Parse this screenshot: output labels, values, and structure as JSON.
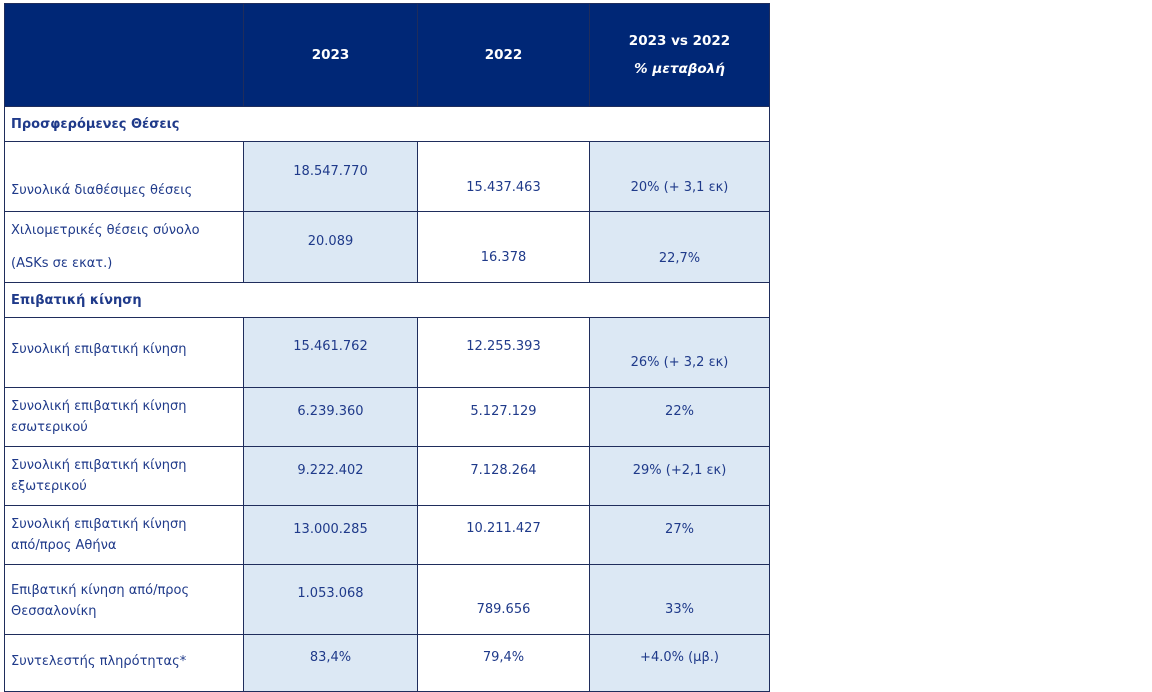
{
  "header": {
    "col2023": "2023",
    "col2022": "2022",
    "colChange": "2023 vs 2022",
    "colChangeSub": "% μεταβολή"
  },
  "sections": {
    "seats": "Προσφερόμενες Θέσεις",
    "passengers": "Επιβατική κίνηση"
  },
  "rows": [
    {
      "label": "Συνολικά διαθέσιμες θέσεις",
      "v2023": "18.547.770",
      "v2022": "15.437.463",
      "change": "20% (+ 3,1 εκ)"
    },
    {
      "label": "Χιλιομετρικές θέσεις σύνολο",
      "label2": "(ASKs σε εκατ.)",
      "v2023": "20.089",
      "v2022": "16.378",
      "change": "22,7%"
    },
    {
      "label": "Συνολική επιβατική κίνηση",
      "v2023": "15.461.762",
      "v2022": "12.255.393",
      "change": "26% (+ 3,2 εκ)"
    },
    {
      "label": "Συνολική επιβατική κίνηση",
      "label2": "εσωτερικού",
      "v2023": "6.239.360",
      "v2022": "5.127.129",
      "change": "22%"
    },
    {
      "label": "Συνολική επιβατική κίνηση",
      "label2": "εξωτερικού",
      "v2023": "9.222.402",
      "v2022": "7.128.264",
      "change": "29% (+2,1 εκ)"
    },
    {
      "label": "Συνολική επιβατική κίνηση",
      "label2": "από/προς Αθήνα",
      "v2023": "13.000.285",
      "v2022": "10.211.427",
      "change": "27%"
    },
    {
      "label": "Επιβατική κίνηση  από/προς",
      "label2": "Θεσσαλονίκη",
      "v2023": "1.053.068",
      "v2022": "789.656",
      "change": "33%"
    },
    {
      "label": "Συντελεστής πληρότητας*",
      "v2023": "83,4%",
      "v2022": "79,4%",
      "change": "+4.0% (μβ.)"
    }
  ]
}
